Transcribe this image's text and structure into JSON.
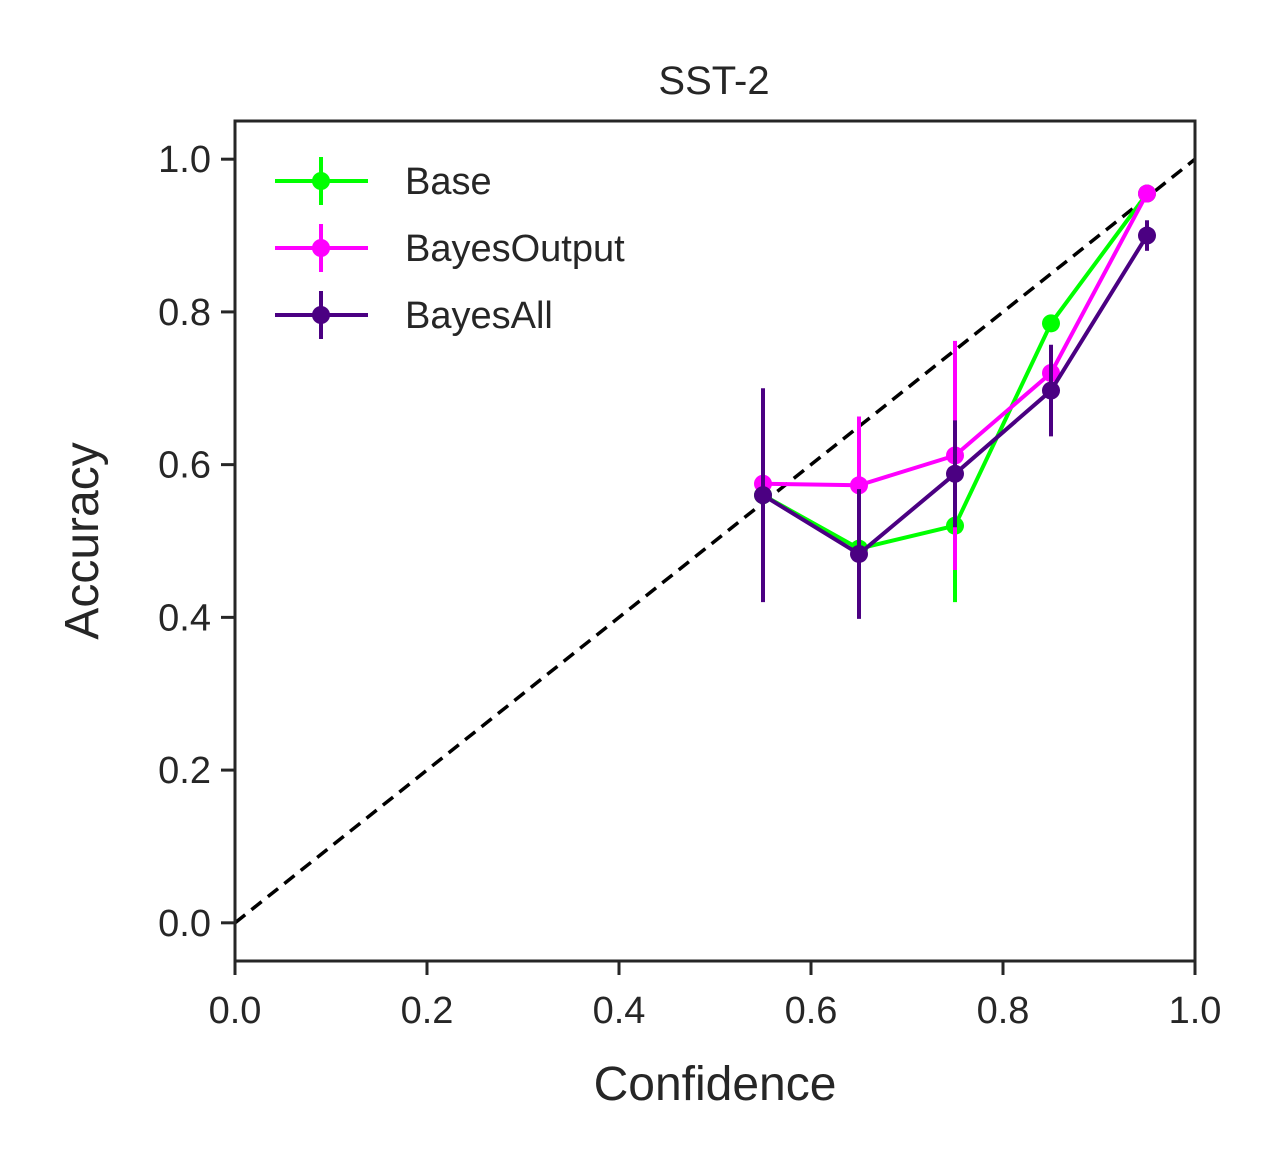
{
  "chart_data": {
    "type": "line",
    "title": "SST-2",
    "xlabel": "Confidence",
    "ylabel": "Accuracy",
    "xlim": [
      0.0,
      1.0
    ],
    "ylim": [
      -0.05,
      1.05
    ],
    "x_ticks": [
      "0.0",
      "0.2",
      "0.4",
      "0.6",
      "0.8",
      "1.0"
    ],
    "y_ticks": [
      "0.0",
      "0.2",
      "0.4",
      "0.6",
      "0.8",
      "1.0"
    ],
    "grid": false,
    "legend_position": "top-left",
    "reference_line": {
      "style": "dashed",
      "color": "#000000",
      "x": [
        0.0,
        1.0
      ],
      "y": [
        0.0,
        1.0
      ]
    },
    "series": [
      {
        "name": "Base",
        "color": "#00ff00",
        "x": [
          0.55,
          0.65,
          0.75,
          0.85,
          0.95
        ],
        "y": [
          0.56,
          0.49,
          0.52,
          0.785,
          0.955
        ],
        "err": [
          0.0,
          0.0,
          0.1,
          0.0,
          0.0
        ]
      },
      {
        "name": "BayesOutput",
        "color": "#ff00ff",
        "x": [
          0.55,
          0.65,
          0.75,
          0.85,
          0.95
        ],
        "y": [
          0.575,
          0.573,
          0.612,
          0.72,
          0.955
        ],
        "err": [
          0.0,
          0.09,
          0.15,
          0.0,
          0.0
        ]
      },
      {
        "name": "BayesAll",
        "color": "#4b0082",
        "x": [
          0.55,
          0.65,
          0.75,
          0.85,
          0.95
        ],
        "y": [
          0.56,
          0.483,
          0.588,
          0.697,
          0.9
        ],
        "err": [
          0.14,
          0.085,
          0.07,
          0.06,
          0.02
        ]
      }
    ]
  }
}
